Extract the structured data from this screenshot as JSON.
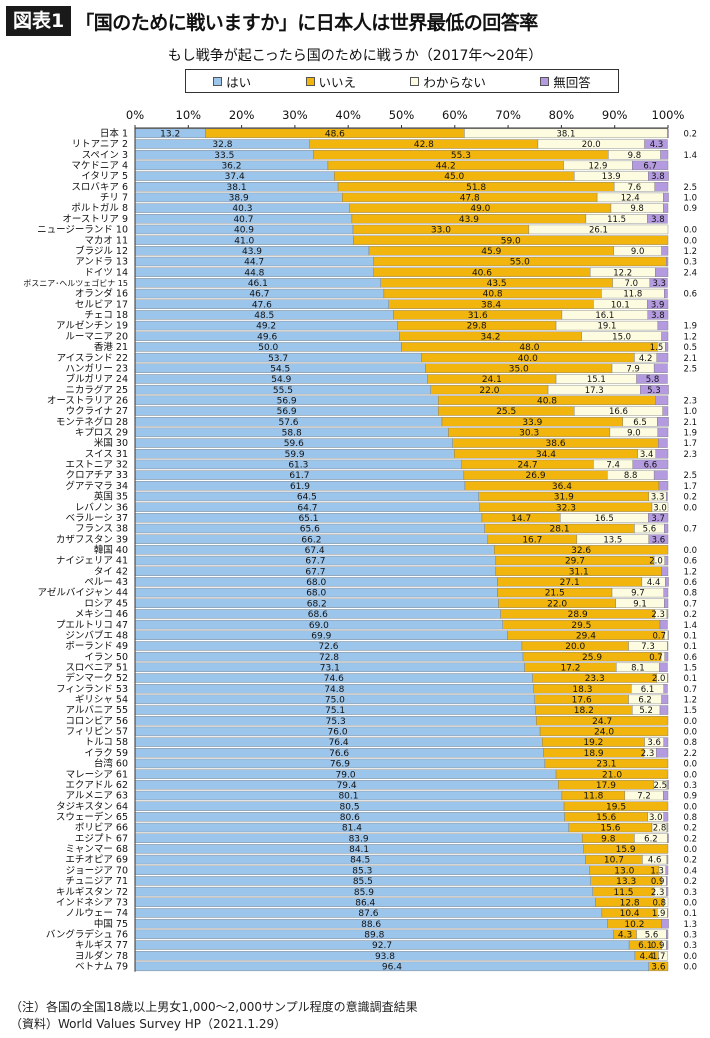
{
  "figure": {
    "label": "図表1",
    "title": "「国のために戦いますか」に日本人は世界最低の回答率"
  },
  "subtitle": "もし戦争が起こったら国のために戦うか（2017年～20年）",
  "colors": {
    "yes": "#9cc5ec",
    "no": "#f2b50d",
    "dk": "#fdfce0",
    "na": "#b49be0"
  },
  "notes": [
    "（注）各国の全国18歳以上男女1,000～2,000サンプル程度の意識調査結果",
    "（資料）World Values Survey HP（2021.1.29）"
  ],
  "chart_data": {
    "type": "bar",
    "orientation": "horizontal",
    "stacked": true,
    "xlim": [
      0,
      100
    ],
    "x_ticks": [
      "0%",
      "10%",
      "20%",
      "30%",
      "40%",
      "50%",
      "60%",
      "70%",
      "80%",
      "90%",
      "100%"
    ],
    "legend_position": "top",
    "series": [
      {
        "name": "はい",
        "key": "yes"
      },
      {
        "name": "いいえ",
        "key": "no"
      },
      {
        "name": "わからない",
        "key": "dk"
      },
      {
        "name": "無回答",
        "key": "na"
      }
    ],
    "rows": [
      {
        "country": "日本",
        "rank": "1",
        "yes": 13.2,
        "no": 48.6,
        "dk": 38.1,
        "na": 0.2,
        "lyes": "13.2",
        "lno": "48.6",
        "ldk": "38.1",
        "lna": "0.2"
      },
      {
        "country": "リトアニア",
        "rank": "2",
        "yes": 32.8,
        "no": 42.8,
        "dk": 20.0,
        "na": 4.3,
        "lyes": "32.8",
        "lno": "42.8",
        "ldk": "20.0",
        "lna": "4.3"
      },
      {
        "country": "スペイン",
        "rank": "3",
        "yes": 33.5,
        "no": 55.3,
        "dk": 9.8,
        "na": 1.4,
        "lyes": "33.5",
        "lno": "55.3",
        "ldk": "9.8",
        "lna": "1.4"
      },
      {
        "country": "マケドニア",
        "rank": "4",
        "yes": 36.2,
        "no": 44.2,
        "dk": 12.9,
        "na": 6.7,
        "lyes": "36.2",
        "lno": "44.2",
        "ldk": "12.9",
        "lna": "6.7"
      },
      {
        "country": "イタリア",
        "rank": "5",
        "yes": 37.4,
        "no": 45.0,
        "dk": 13.9,
        "na": 3.8,
        "lyes": "37.4",
        "lno": "45.0",
        "ldk": "13.9",
        "lna": "3.8"
      },
      {
        "country": "スロバキア",
        "rank": "6",
        "yes": 38.1,
        "no": 51.8,
        "dk": 7.6,
        "na": 2.5,
        "lyes": "38.1",
        "lno": "51.8",
        "ldk": "7.6",
        "lna": "2.5"
      },
      {
        "country": "チリ",
        "rank": "7",
        "yes": 38.9,
        "no": 47.8,
        "dk": 12.4,
        "na": 1.0,
        "lyes": "38.9",
        "lno": "47.8",
        "ldk": "12.4",
        "lna": "1.0"
      },
      {
        "country": "ポルトガル",
        "rank": "8",
        "yes": 40.3,
        "no": 49.0,
        "dk": 9.8,
        "na": 0.9,
        "lyes": "40.3",
        "lno": "49.0",
        "ldk": "9.8",
        "lna": "0.9"
      },
      {
        "country": "オーストリア",
        "rank": "9",
        "yes": 40.7,
        "no": 43.9,
        "dk": 11.5,
        "na": 3.8,
        "lyes": "40.7",
        "lno": "43.9",
        "ldk": "11.5",
        "lna": "3.8"
      },
      {
        "country": "ニュージーランド",
        "rank": "10",
        "yes": 40.9,
        "no": 33.0,
        "dk": 26.1,
        "na": 0.0,
        "lyes": "40.9",
        "lno": "33.0",
        "ldk": "26.1",
        "lna": "0.0"
      },
      {
        "country": "マカオ",
        "rank": "11",
        "yes": 41.0,
        "no": 59.0,
        "dk": 0.0,
        "na": 0.0,
        "lyes": "41.0",
        "lno": "59.0",
        "ldk": "",
        "lna": "0.0"
      },
      {
        "country": "ブラジル",
        "rank": "12",
        "yes": 43.9,
        "no": 45.9,
        "dk": 9.0,
        "na": 1.2,
        "lyes": "43.9",
        "lno": "45.9",
        "ldk": "9.0",
        "lna": "1.2"
      },
      {
        "country": "アンドラ",
        "rank": "13",
        "yes": 44.7,
        "no": 55.0,
        "dk": 0.0,
        "na": 0.3,
        "lyes": "44.7",
        "lno": "55.0",
        "ldk": "",
        "lna": "0.3"
      },
      {
        "country": "ドイツ",
        "rank": "14",
        "yes": 44.8,
        "no": 40.6,
        "dk": 12.2,
        "na": 2.4,
        "lyes": "44.8",
        "lno": "40.6",
        "ldk": "12.2",
        "lna": "2.4"
      },
      {
        "country": "ボスニア･ヘルツェゴビナ",
        "rank": "15",
        "yes": 46.1,
        "no": 43.5,
        "dk": 7.0,
        "na": 3.3,
        "lyes": "46.1",
        "lno": "43.5",
        "ldk": "7.0",
        "lna": "3.3"
      },
      {
        "country": "オランダ",
        "rank": "16",
        "yes": 46.7,
        "no": 40.8,
        "dk": 11.8,
        "na": 0.6,
        "lyes": "46.7",
        "lno": "40.8",
        "ldk": "11.8",
        "lna": "0.6"
      },
      {
        "country": "セルビア",
        "rank": "17",
        "yes": 47.6,
        "no": 38.4,
        "dk": 10.1,
        "na": 3.9,
        "lyes": "47.6",
        "lno": "38.4",
        "ldk": "10.1",
        "lna": "3.9"
      },
      {
        "country": "チェコ",
        "rank": "18",
        "yes": 48.5,
        "no": 31.6,
        "dk": 16.1,
        "na": 3.8,
        "lyes": "48.5",
        "lno": "31.6",
        "ldk": "16.1",
        "lna": "3.8"
      },
      {
        "country": "アルゼンチン",
        "rank": "19",
        "yes": 49.2,
        "no": 29.8,
        "dk": 19.1,
        "na": 1.9,
        "lyes": "49.2",
        "lno": "29.8",
        "ldk": "19.1",
        "lna": "1.9"
      },
      {
        "country": "ルーマニア",
        "rank": "20",
        "yes": 49.6,
        "no": 34.2,
        "dk": 15.0,
        "na": 1.2,
        "lyes": "49.6",
        "lno": "34.2",
        "ldk": "15.0",
        "lna": "1.2"
      },
      {
        "country": "香港",
        "rank": "21",
        "yes": 50.0,
        "no": 48.0,
        "dk": 1.5,
        "na": 0.5,
        "lyes": "50.0",
        "lno": "48.0",
        "ldk": "1.5",
        "lna": "0.5"
      },
      {
        "country": "アイスランド",
        "rank": "22",
        "yes": 53.7,
        "no": 40.0,
        "dk": 4.2,
        "na": 2.1,
        "lyes": "53.7",
        "lno": "40.0",
        "ldk": "4.2",
        "lna": "2.1"
      },
      {
        "country": "ハンガリー",
        "rank": "23",
        "yes": 54.5,
        "no": 35.0,
        "dk": 7.9,
        "na": 2.5,
        "lyes": "54.5",
        "lno": "35.0",
        "ldk": "7.9",
        "lna": "2.5"
      },
      {
        "country": "ブルガリア",
        "rank": "24",
        "yes": 54.9,
        "no": 24.1,
        "dk": 15.1,
        "na": 5.8,
        "lyes": "54.9",
        "lno": "24.1",
        "ldk": "15.1",
        "lna": "5.8"
      },
      {
        "country": "ニカラグア",
        "rank": "25",
        "yes": 55.5,
        "no": 22.0,
        "dk": 17.3,
        "na": 5.3,
        "lyes": "55.5",
        "lno": "22.0",
        "ldk": "17.3",
        "lna": "5.3"
      },
      {
        "country": "オーストラリア",
        "rank": "26",
        "yes": 56.9,
        "no": 40.8,
        "dk": 0.0,
        "na": 2.3,
        "lyes": "56.9",
        "lno": "40.8",
        "ldk": "",
        "lna": "2.3"
      },
      {
        "country": "ウクライナ",
        "rank": "27",
        "yes": 56.9,
        "no": 25.5,
        "dk": 16.6,
        "na": 1.0,
        "lyes": "56.9",
        "lno": "25.5",
        "ldk": "16.6",
        "lna": "1.0"
      },
      {
        "country": "モンテネグロ",
        "rank": "28",
        "yes": 57.6,
        "no": 33.9,
        "dk": 6.5,
        "na": 2.1,
        "lyes": "57.6",
        "lno": "33.9",
        "ldk": "6.5",
        "lna": "2.1"
      },
      {
        "country": "キプロス",
        "rank": "29",
        "yes": 58.8,
        "no": 30.3,
        "dk": 9.0,
        "na": 1.9,
        "lyes": "58.8",
        "lno": "30.3",
        "ldk": "9.0",
        "lna": "1.9"
      },
      {
        "country": "米国",
        "rank": "30",
        "yes": 59.6,
        "no": 38.6,
        "dk": 0.0,
        "na": 1.7,
        "lyes": "59.6",
        "lno": "38.6",
        "ldk": "",
        "lna": "1.7"
      },
      {
        "country": "スイス",
        "rank": "31",
        "yes": 59.9,
        "no": 34.4,
        "dk": 3.4,
        "na": 2.3,
        "lyes": "59.9",
        "lno": "34.4",
        "ldk": "3.4",
        "lna": "2.3"
      },
      {
        "country": "エストニア",
        "rank": "32",
        "yes": 61.3,
        "no": 24.7,
        "dk": 7.4,
        "na": 6.6,
        "lyes": "61.3",
        "lno": "24.7",
        "ldk": "7.4",
        "lna": "6.6"
      },
      {
        "country": "クロアチア",
        "rank": "33",
        "yes": 61.7,
        "no": 26.9,
        "dk": 8.8,
        "na": 2.5,
        "lyes": "61.7",
        "lno": "26.9",
        "ldk": "8.8",
        "lna": "2.5"
      },
      {
        "country": "グアテマラ",
        "rank": "34",
        "yes": 61.9,
        "no": 36.4,
        "dk": 0.0,
        "na": 1.7,
        "lyes": "61.9",
        "lno": "36.4",
        "ldk": "",
        "lna": "1.7"
      },
      {
        "country": "英国",
        "rank": "35",
        "yes": 64.5,
        "no": 31.9,
        "dk": 3.3,
        "na": 0.2,
        "lyes": "64.5",
        "lno": "31.9",
        "ldk": "3.3",
        "lna": "0.2"
      },
      {
        "country": "レバノン",
        "rank": "36",
        "yes": 64.7,
        "no": 32.3,
        "dk": 3.0,
        "na": 0.0,
        "lyes": "64.7",
        "lno": "32.3",
        "ldk": "3.0",
        "lna": "0.0"
      },
      {
        "country": "ベラルーシ",
        "rank": "37",
        "yes": 65.1,
        "no": 14.7,
        "dk": 16.5,
        "na": 3.7,
        "lyes": "65.1",
        "lno": "14.7",
        "ldk": "16.5",
        "lna": "3.7"
      },
      {
        "country": "フランス",
        "rank": "38",
        "yes": 65.6,
        "no": 28.1,
        "dk": 5.6,
        "na": 0.7,
        "lyes": "65.6",
        "lno": "28.1",
        "ldk": "5.6",
        "lna": "0.7"
      },
      {
        "country": "カザフスタン",
        "rank": "39",
        "yes": 66.2,
        "no": 16.7,
        "dk": 13.5,
        "na": 3.6,
        "lyes": "66.2",
        "lno": "16.7",
        "ldk": "13.5",
        "lna": "3.6"
      },
      {
        "country": "韓国",
        "rank": "40",
        "yes": 67.4,
        "no": 32.6,
        "dk": 0.0,
        "na": 0.0,
        "lyes": "67.4",
        "lno": "32.6",
        "ldk": "",
        "lna": "0.0"
      },
      {
        "country": "ナイジェリア",
        "rank": "41",
        "yes": 67.7,
        "no": 29.7,
        "dk": 2.0,
        "na": 0.6,
        "lyes": "67.7",
        "lno": "29.7",
        "ldk": "2.0",
        "lna": "0.6"
      },
      {
        "country": "タイ",
        "rank": "42",
        "yes": 67.7,
        "no": 31.1,
        "dk": 0.0,
        "na": 1.2,
        "lyes": "67.7",
        "lno": "31.1",
        "ldk": "",
        "lna": "1.2"
      },
      {
        "country": "ペルー",
        "rank": "43",
        "yes": 68.0,
        "no": 27.1,
        "dk": 4.4,
        "na": 0.6,
        "lyes": "68.0",
        "lno": "27.1",
        "ldk": "4.4",
        "lna": "0.6"
      },
      {
        "country": "アゼルバイジャン",
        "rank": "44",
        "yes": 68.0,
        "no": 21.5,
        "dk": 9.7,
        "na": 0.8,
        "lyes": "68.0",
        "lno": "21.5",
        "ldk": "9.7",
        "lna": "0.8"
      },
      {
        "country": "ロシア",
        "rank": "45",
        "yes": 68.2,
        "no": 22.0,
        "dk": 9.1,
        "na": 0.7,
        "lyes": "68.2",
        "lno": "22.0",
        "ldk": "9.1",
        "lna": "0.7"
      },
      {
        "country": "メキシコ",
        "rank": "46",
        "yes": 68.6,
        "no": 28.9,
        "dk": 2.3,
        "na": 0.2,
        "lyes": "68.6",
        "lno": "28.9",
        "ldk": "2.3",
        "lna": "0.2"
      },
      {
        "country": "プエルトリコ",
        "rank": "47",
        "yes": 69.0,
        "no": 29.5,
        "dk": 0.0,
        "na": 1.4,
        "lyes": "69.0",
        "lno": "29.5",
        "ldk": "",
        "lna": "1.4"
      },
      {
        "country": "ジンバブエ",
        "rank": "48",
        "yes": 69.9,
        "no": 29.4,
        "dk": 0.7,
        "na": 0.1,
        "lyes": "69.9",
        "lno": "29.4",
        "ldk": "0.7",
        "lna": "0.1"
      },
      {
        "country": "ボーランド",
        "rank": "49",
        "yes": 72.6,
        "no": 20.0,
        "dk": 7.3,
        "na": 0.1,
        "lyes": "72.6",
        "lno": "20.0",
        "ldk": "7.3",
        "lna": "0.1"
      },
      {
        "country": "イラン",
        "rank": "50",
        "yes": 72.8,
        "no": 25.9,
        "dk": 0.7,
        "na": 0.6,
        "lyes": "72.8",
        "lno": "25.9",
        "ldk": "0.7",
        "lna": "0.6"
      },
      {
        "country": "スロベニア",
        "rank": "51",
        "yes": 73.1,
        "no": 17.2,
        "dk": 8.1,
        "na": 1.5,
        "lyes": "73.1",
        "lno": "17.2",
        "ldk": "8.1",
        "lna": "1.5"
      },
      {
        "country": "デンマーク",
        "rank": "52",
        "yes": 74.6,
        "no": 23.3,
        "dk": 2.0,
        "na": 0.1,
        "lyes": "74.6",
        "lno": "23.3",
        "ldk": "2.0",
        "lna": "0.1"
      },
      {
        "country": "フィンランド",
        "rank": "53",
        "yes": 74.8,
        "no": 18.3,
        "dk": 6.1,
        "na": 0.7,
        "lyes": "74.8",
        "lno": "18.3",
        "ldk": "6.1",
        "lna": "0.7"
      },
      {
        "country": "ギリシャ",
        "rank": "54",
        "yes": 75.0,
        "no": 17.6,
        "dk": 6.2,
        "na": 1.2,
        "lyes": "75.0",
        "lno": "17.6",
        "ldk": "6.2",
        "lna": "1.2"
      },
      {
        "country": "アルバニア",
        "rank": "55",
        "yes": 75.1,
        "no": 18.2,
        "dk": 5.2,
        "na": 1.5,
        "lyes": "75.1",
        "lno": "18.2",
        "ldk": "5.2",
        "lna": "1.5"
      },
      {
        "country": "コロンビア",
        "rank": "56",
        "yes": 75.3,
        "no": 24.7,
        "dk": 0.0,
        "na": 0.0,
        "lyes": "75.3",
        "lno": "24.7",
        "ldk": "",
        "lna": "0.0"
      },
      {
        "country": "フィリピン",
        "rank": "57",
        "yes": 76.0,
        "no": 24.0,
        "dk": 0.0,
        "na": 0.0,
        "lyes": "76.0",
        "lno": "24.0",
        "ldk": "",
        "lna": "0.0"
      },
      {
        "country": "トルコ",
        "rank": "58",
        "yes": 76.4,
        "no": 19.2,
        "dk": 3.6,
        "na": 0.8,
        "lyes": "76.4",
        "lno": "19.2",
        "ldk": "3.6",
        "lna": "0.8"
      },
      {
        "country": "イラク",
        "rank": "59",
        "yes": 76.6,
        "no": 18.9,
        "dk": 2.3,
        "na": 2.2,
        "lyes": "76.6",
        "lno": "18.9",
        "ldk": "2.3",
        "lna": "2.2"
      },
      {
        "country": "台湾",
        "rank": "60",
        "yes": 76.9,
        "no": 23.1,
        "dk": 0.0,
        "na": 0.0,
        "lyes": "76.9",
        "lno": "23.1",
        "ldk": "",
        "lna": "0.0"
      },
      {
        "country": "マレーシア",
        "rank": "61",
        "yes": 79.0,
        "no": 21.0,
        "dk": 0.0,
        "na": 0.0,
        "lyes": "79.0",
        "lno": "21.0",
        "ldk": "",
        "lna": "0.0"
      },
      {
        "country": "エクアドル",
        "rank": "62",
        "yes": 79.4,
        "no": 17.9,
        "dk": 2.5,
        "na": 0.3,
        "lyes": "79.4",
        "lno": "17.9",
        "ldk": "2.5",
        "lna": "0.3"
      },
      {
        "country": "アルメニア",
        "rank": "63",
        "yes": 80.1,
        "no": 11.8,
        "dk": 7.2,
        "na": 0.9,
        "lyes": "80.1",
        "lno": "11.8",
        "ldk": "7.2",
        "lna": "0.9"
      },
      {
        "country": "タジキスタン",
        "rank": "64",
        "yes": 80.5,
        "no": 19.5,
        "dk": 0.0,
        "na": 0.0,
        "lyes": "80.5",
        "lno": "19.5",
        "ldk": "",
        "lna": "0.0"
      },
      {
        "country": "スウェーデン",
        "rank": "65",
        "yes": 80.6,
        "no": 15.6,
        "dk": 3.0,
        "na": 0.8,
        "lyes": "80.6",
        "lno": "15.6",
        "ldk": "3.0",
        "lna": "0.8"
      },
      {
        "country": "ボリビア",
        "rank": "66",
        "yes": 81.4,
        "no": 15.6,
        "dk": 2.8,
        "na": 0.2,
        "lyes": "81.4",
        "lno": "15.6",
        "ldk": "2.8",
        "lna": "0.2"
      },
      {
        "country": "エジプト",
        "rank": "67",
        "yes": 83.9,
        "no": 9.8,
        "dk": 6.2,
        "na": 0.2,
        "lyes": "83.9",
        "lno": "9.8",
        "ldk": "6.2",
        "lna": "0.2"
      },
      {
        "country": "ミャンマー",
        "rank": "68",
        "yes": 84.1,
        "no": 15.9,
        "dk": 0.0,
        "na": 0.0,
        "lyes": "84.1",
        "lno": "15.9",
        "ldk": "",
        "lna": "0.0"
      },
      {
        "country": "エチオピア",
        "rank": "69",
        "yes": 84.5,
        "no": 10.7,
        "dk": 4.6,
        "na": 0.2,
        "lyes": "84.5",
        "lno": "10.7",
        "ldk": "4.6",
        "lna": "0.2"
      },
      {
        "country": "ジョージア",
        "rank": "70",
        "yes": 85.3,
        "no": 13.0,
        "dk": 1.3,
        "na": 0.4,
        "lyes": "85.3",
        "lno": "13.0",
        "ldk": "1.3",
        "lna": "0.4"
      },
      {
        "country": "チュニジア",
        "rank": "71",
        "yes": 85.5,
        "no": 13.3,
        "dk": 0.9,
        "na": 0.2,
        "lyes": "85.5",
        "lno": "13.3",
        "ldk": "0.9",
        "lna": "0.2"
      },
      {
        "country": "キルギスタン",
        "rank": "72",
        "yes": 85.9,
        "no": 11.5,
        "dk": 2.3,
        "na": 0.3,
        "lyes": "85.9",
        "lno": "11.5",
        "ldk": "2.3",
        "lna": "0.3"
      },
      {
        "country": "インドネシア",
        "rank": "73",
        "yes": 86.4,
        "no": 12.8,
        "dk": 0.8,
        "na": 0.0,
        "lyes": "86.4",
        "lno": "12.8",
        "ldk": "0.8",
        "lna": "0.0"
      },
      {
        "country": "ノルウェー",
        "rank": "74",
        "yes": 87.6,
        "no": 10.4,
        "dk": 1.9,
        "na": 0.1,
        "lyes": "87.6",
        "lno": "10.4",
        "ldk": "1.9",
        "lna": "0.1"
      },
      {
        "country": "中国",
        "rank": "75",
        "yes": 88.6,
        "no": 10.2,
        "dk": 0.0,
        "na": 1.3,
        "lyes": "88.6",
        "lno": "10.2",
        "ldk": "",
        "lna": "1.3"
      },
      {
        "country": "バングラデシュ",
        "rank": "76",
        "yes": 89.8,
        "no": 4.3,
        "dk": 5.6,
        "na": 0.3,
        "lyes": "89.8",
        "lno": "4.3",
        "ldk": "5.6",
        "lna": "0.3"
      },
      {
        "country": "キルギス",
        "rank": "77",
        "yes": 92.7,
        "no": 6.1,
        "dk": 0.9,
        "na": 0.3,
        "lyes": "92.7",
        "lno": "6.1",
        "ldk": "0.9",
        "lna": "0.3"
      },
      {
        "country": "ヨルダン",
        "rank": "78",
        "yes": 93.8,
        "no": 4.4,
        "dk": 1.7,
        "na": 0.0,
        "lyes": "93.8",
        "lno": "4.4",
        "ldk": "1.7",
        "lna": "0.0"
      },
      {
        "country": "ベトナム",
        "rank": "79",
        "yes": 96.4,
        "no": 3.6,
        "dk": 0.0,
        "na": 0.0,
        "lyes": "96.4",
        "lno": "3.6",
        "ldk": "",
        "lna": "0.0"
      }
    ]
  }
}
